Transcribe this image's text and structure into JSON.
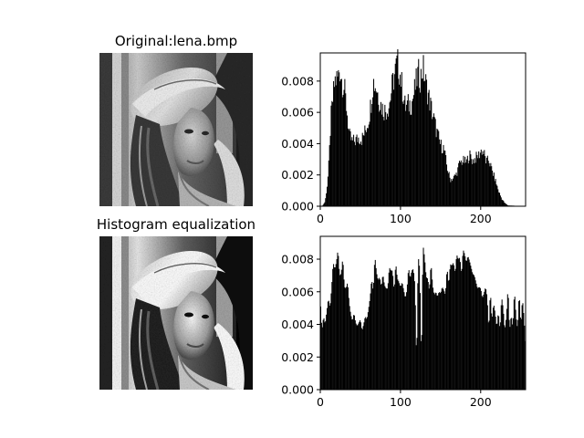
{
  "figure": {
    "titles": [
      "Original:lena.bmp",
      "Histogram equalization"
    ],
    "images": [
      {
        "name": "original-image",
        "description_icon": "portrait-photo-icon"
      },
      {
        "name": "equalized-image",
        "description_icon": "portrait-photo-icon"
      }
    ]
  },
  "chart_data": [
    {
      "type": "bar",
      "title": "",
      "xlabel": "",
      "ylabel": "",
      "xlim": [
        0,
        256
      ],
      "ylim": [
        0,
        0.0098
      ],
      "xticks": [
        0,
        100,
        200
      ],
      "yticks": [
        0.0,
        0.002,
        0.004,
        0.006,
        0.008
      ],
      "ytick_labels": [
        "0.000",
        "0.002",
        "0.004",
        "0.006",
        "0.008"
      ],
      "xtick_labels": [
        "0",
        "100",
        "200"
      ],
      "bar_color": "#000000",
      "keypoints": [
        [
          0,
          0
        ],
        [
          3,
          5e-05
        ],
        [
          6,
          0.0003
        ],
        [
          9,
          0.0015
        ],
        [
          11,
          0.003
        ],
        [
          13,
          0.0055
        ],
        [
          16,
          0.007
        ],
        [
          18,
          0.008
        ],
        [
          20,
          0.0081
        ],
        [
          22,
          0.0082
        ],
        [
          24,
          0.0089
        ],
        [
          27,
          0.008
        ],
        [
          30,
          0.0075
        ],
        [
          33,
          0.0062
        ],
        [
          36,
          0.0045
        ],
        [
          40,
          0.0041
        ],
        [
          44,
          0.0042
        ],
        [
          48,
          0.0044
        ],
        [
          52,
          0.0043
        ],
        [
          56,
          0.0048
        ],
        [
          60,
          0.0055
        ],
        [
          63,
          0.0065
        ],
        [
          66,
          0.008
        ],
        [
          70,
          0.0076
        ],
        [
          74,
          0.0067
        ],
        [
          78,
          0.0062
        ],
        [
          82,
          0.0061
        ],
        [
          86,
          0.0065
        ],
        [
          90,
          0.0078
        ],
        [
          93,
          0.0085
        ],
        [
          96,
          0.0092
        ],
        [
          99,
          0.0086
        ],
        [
          102,
          0.0076
        ],
        [
          106,
          0.0063
        ],
        [
          110,
          0.0065
        ],
        [
          114,
          0.0066
        ],
        [
          118,
          0.0075
        ],
        [
          122,
          0.0085
        ],
        [
          125,
          0.0082
        ],
        [
          128,
          0.0089
        ],
        [
          132,
          0.0077
        ],
        [
          136,
          0.0068
        ],
        [
          140,
          0.0059
        ],
        [
          145,
          0.0048
        ],
        [
          150,
          0.0039
        ],
        [
          154,
          0.0037
        ],
        [
          158,
          0.0025
        ],
        [
          162,
          0.0017
        ],
        [
          166,
          0.0018
        ],
        [
          170,
          0.0021
        ],
        [
          174,
          0.0028
        ],
        [
          178,
          0.0029
        ],
        [
          182,
          0.0028
        ],
        [
          186,
          0.0033
        ],
        [
          190,
          0.0029
        ],
        [
          194,
          0.0031
        ],
        [
          198,
          0.0033
        ],
        [
          201,
          0.0036
        ],
        [
          204,
          0.0034
        ],
        [
          207,
          0.0028
        ],
        [
          210,
          0.003
        ],
        [
          214,
          0.0023
        ],
        [
          218,
          0.0017
        ],
        [
          222,
          0.001
        ],
        [
          226,
          0.0005
        ],
        [
          230,
          0.0002
        ],
        [
          234,
          5e-05
        ],
        [
          256,
          0
        ]
      ]
    },
    {
      "type": "bar",
      "title": "",
      "xlabel": "",
      "ylabel": "",
      "xlim": [
        0,
        256
      ],
      "ylim": [
        0,
        0.0094
      ],
      "xticks": [
        0,
        100,
        200
      ],
      "yticks": [
        0.0,
        0.002,
        0.004,
        0.006,
        0.008
      ],
      "ytick_labels": [
        "0.000",
        "0.002",
        "0.004",
        "0.006",
        "0.008"
      ],
      "xtick_labels": [
        "0",
        "100",
        "200"
      ],
      "bar_color": "#000000",
      "keypoints": [
        [
          0,
          0.0056
        ],
        [
          2,
          0.0036
        ],
        [
          4,
          0.0045
        ],
        [
          6,
          0.004
        ],
        [
          8,
          0.0048
        ],
        [
          10,
          0.0056
        ],
        [
          12,
          0.005
        ],
        [
          14,
          0.0062
        ],
        [
          16,
          0.0078
        ],
        [
          18,
          0.0074
        ],
        [
          20,
          0.0078
        ],
        [
          22,
          0.0086
        ],
        [
          24,
          0.007
        ],
        [
          26,
          0.0071
        ],
        [
          28,
          0.0081
        ],
        [
          30,
          0.0063
        ],
        [
          32,
          0.0062
        ],
        [
          34,
          0.0066
        ],
        [
          36,
          0.0053
        ],
        [
          38,
          0.0046
        ],
        [
          40,
          0.0042
        ],
        [
          42,
          0.0047
        ],
        [
          44,
          0.0041
        ],
        [
          46,
          0.0039
        ],
        [
          48,
          0.0041
        ],
        [
          50,
          0.0043
        ],
        [
          52,
          0.0036
        ],
        [
          54,
          0.004
        ],
        [
          56,
          0.0045
        ],
        [
          58,
          0.0043
        ],
        [
          60,
          0.0049
        ],
        [
          62,
          0.0056
        ],
        [
          64,
          0.0068
        ],
        [
          66,
          0.006
        ],
        [
          68,
          0.0082
        ],
        [
          70,
          0.0072
        ],
        [
          72,
          0.0067
        ],
        [
          74,
          0.0069
        ],
        [
          76,
          0.0063
        ],
        [
          78,
          0.0071
        ],
        [
          80,
          0.0064
        ],
        [
          82,
          0.0062
        ],
        [
          84,
          0.0062
        ],
        [
          86,
          0.0075
        ],
        [
          88,
          0.0073
        ],
        [
          90,
          0.0073
        ],
        [
          92,
          0.006
        ],
        [
          94,
          0.0078
        ],
        [
          96,
          0.0068
        ],
        [
          98,
          0.0066
        ],
        [
          100,
          0.0063
        ],
        [
          102,
          0.0066
        ],
        [
          104,
          0.0061
        ],
        [
          106,
          0.0056
        ],
        [
          108,
          0.0061
        ],
        [
          110,
          0.0075
        ],
        [
          112,
          0.0068
        ],
        [
          114,
          0.0073
        ],
        [
          116,
          0.0074
        ],
        [
          118,
          0.0064
        ],
        [
          120,
          0.0015
        ],
        [
          122,
          0.0082
        ],
        [
          124,
          0.0074
        ],
        [
          126,
          0.0015
        ],
        [
          128,
          0.0089
        ],
        [
          130,
          0.0081
        ],
        [
          132,
          0.0069
        ],
        [
          134,
          0.0068
        ],
        [
          136,
          0.006
        ],
        [
          138,
          0.0078
        ],
        [
          140,
          0.0064
        ],
        [
          142,
          0.0058
        ],
        [
          144,
          0.006
        ],
        [
          146,
          0.0057
        ],
        [
          148,
          0.006
        ],
        [
          150,
          0.0059
        ],
        [
          152,
          0.0063
        ],
        [
          154,
          0.0061
        ],
        [
          156,
          0.0058
        ],
        [
          158,
          0.0075
        ],
        [
          160,
          0.0064
        ],
        [
          162,
          0.0077
        ],
        [
          164,
          0.0076
        ],
        [
          166,
          0.0078
        ],
        [
          168,
          0.0071
        ],
        [
          170,
          0.0083
        ],
        [
          172,
          0.008
        ],
        [
          174,
          0.0081
        ],
        [
          176,
          0.007
        ],
        [
          178,
          0.0086
        ],
        [
          180,
          0.0083
        ],
        [
          182,
          0.0078
        ],
        [
          184,
          0.0082
        ],
        [
          186,
          0.0079
        ],
        [
          188,
          0.0075
        ],
        [
          190,
          0.0071
        ],
        [
          192,
          0.007
        ],
        [
          194,
          0.0066
        ],
        [
          196,
          0.0062
        ],
        [
          198,
          0.0063
        ],
        [
          200,
          0.0062
        ],
        [
          202,
          0.0056
        ],
        [
          204,
          0.0059
        ],
        [
          206,
          0.0063
        ],
        [
          208,
          0.0057
        ],
        [
          210,
          0.0036
        ],
        [
          212,
          0.0061
        ],
        [
          214,
          0.0042
        ],
        [
          216,
          0.0053
        ],
        [
          218,
          0.0047
        ],
        [
          220,
          0.0038
        ],
        [
          222,
          0.0048
        ],
        [
          224,
          0.0036
        ],
        [
          226,
          0.0057
        ],
        [
          228,
          0.005
        ],
        [
          230,
          0.0036
        ],
        [
          232,
          0.0045
        ],
        [
          234,
          0.0063
        ],
        [
          236,
          0.0036
        ],
        [
          238,
          0.0046
        ],
        [
          240,
          0.0038
        ],
        [
          242,
          0.0061
        ],
        [
          244,
          0.0045
        ],
        [
          246,
          0.0037
        ],
        [
          248,
          0.006
        ],
        [
          250,
          0.0039
        ],
        [
          252,
          0.0056
        ],
        [
          254,
          0.0044
        ],
        [
          256,
          0.0025
        ]
      ]
    }
  ]
}
